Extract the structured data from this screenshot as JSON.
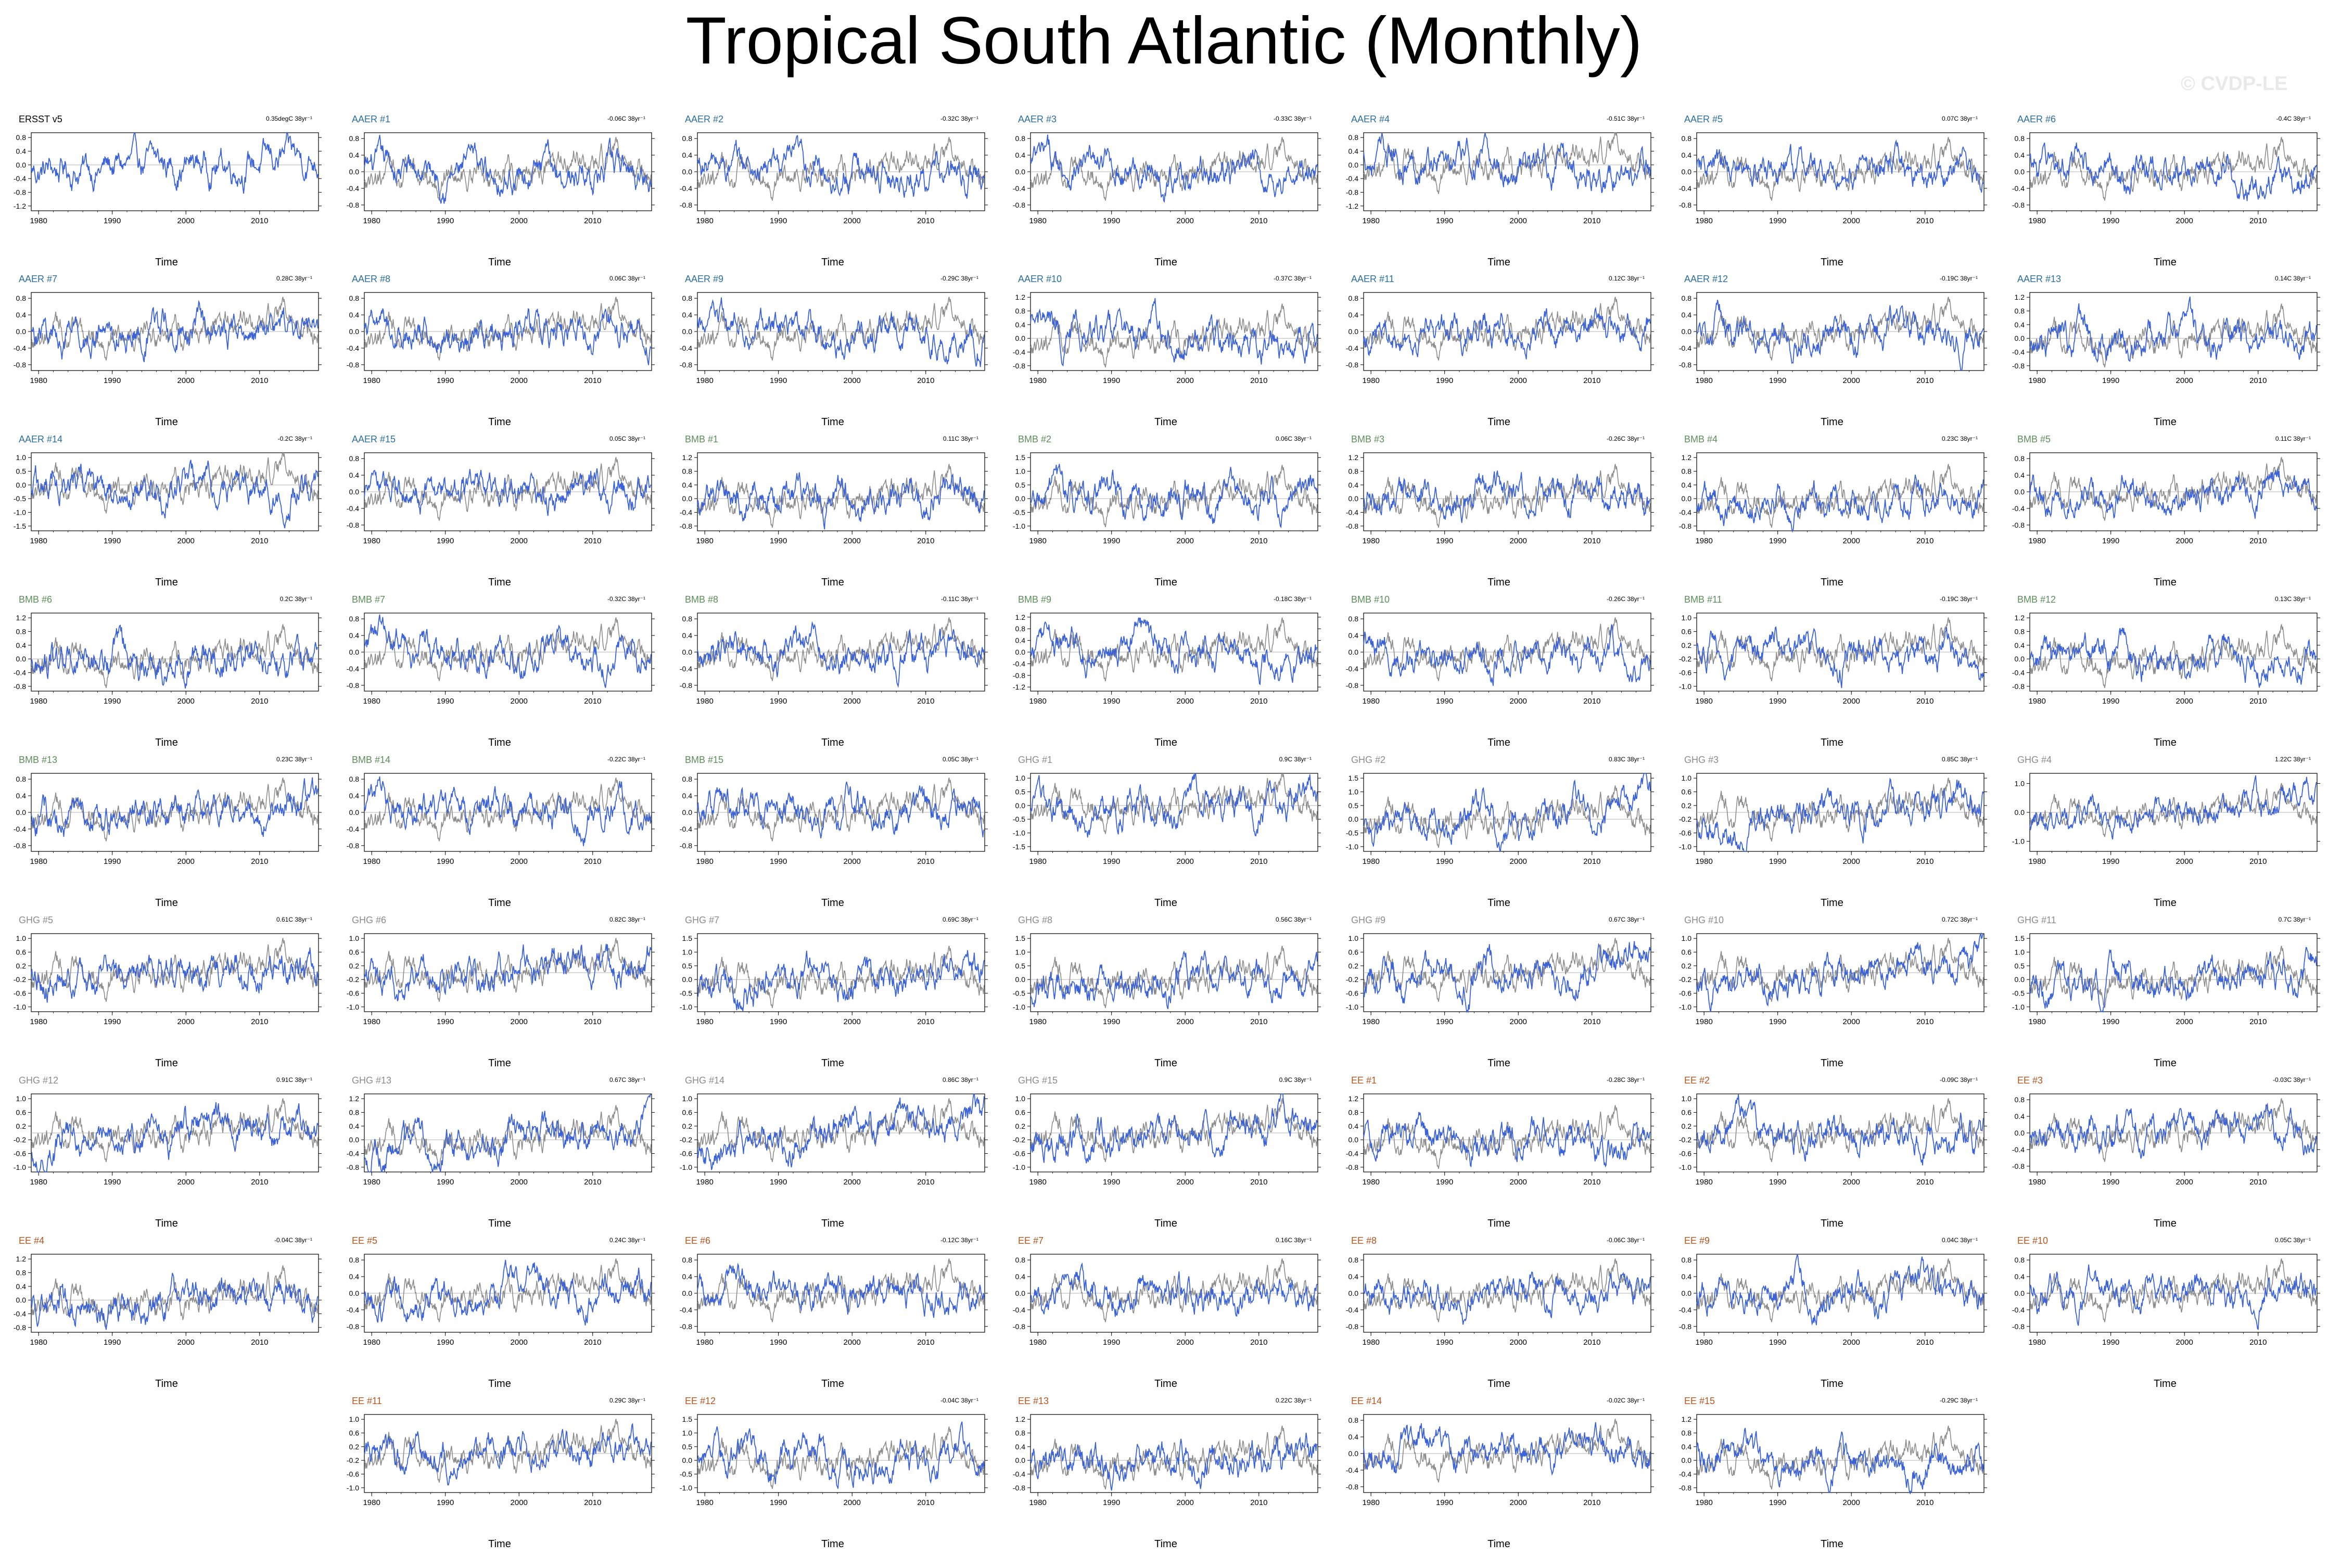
{
  "title": "Tropical South Atlantic (Monthly)",
  "copyright": "© CVDP-LE",
  "colors": {
    "obs_line": "#3b62d6",
    "model_line": "#8c8c8c",
    "zero_line": "#b4b4b4",
    "ersst_label": "#000000",
    "aaer_label": "#2a6fa1",
    "bmb_label": "#5a8f5a",
    "ghg_label": "#8c8c8c",
    "ee_label": "#b8541c"
  },
  "panels": [
    {
      "label": "ERSST v5",
      "group": "ersst",
      "trend": "0.35degC 38yr⁻¹"
    },
    {
      "label": "AAER #1",
      "group": "aaer",
      "trend": "-0.06C 38yr⁻¹"
    },
    {
      "label": "AAER #2",
      "group": "aaer",
      "trend": "-0.32C 38yr⁻¹"
    },
    {
      "label": "AAER #3",
      "group": "aaer",
      "trend": "-0.33C 38yr⁻¹"
    },
    {
      "label": "AAER #4",
      "group": "aaer",
      "trend": "-0.51C 38yr⁻¹"
    },
    {
      "label": "AAER #5",
      "group": "aaer",
      "trend": "0.07C 38yr⁻¹"
    },
    {
      "label": "AAER #6",
      "group": "aaer",
      "trend": "-0.4C 38yr⁻¹"
    },
    {
      "label": "AAER #7",
      "group": "aaer",
      "trend": "0.28C 38yr⁻¹"
    },
    {
      "label": "AAER #8",
      "group": "aaer",
      "trend": "0.06C 38yr⁻¹"
    },
    {
      "label": "AAER #9",
      "group": "aaer",
      "trend": "-0.29C 38yr⁻¹"
    },
    {
      "label": "AAER #10",
      "group": "aaer",
      "trend": "-0.37C 38yr⁻¹"
    },
    {
      "label": "AAER #11",
      "group": "aaer",
      "trend": "0.12C 38yr⁻¹"
    },
    {
      "label": "AAER #12",
      "group": "aaer",
      "trend": "-0.19C 38yr⁻¹"
    },
    {
      "label": "AAER #13",
      "group": "aaer",
      "trend": "0.14C 38yr⁻¹"
    },
    {
      "label": "AAER #14",
      "group": "aaer",
      "trend": "-0.2C 38yr⁻¹"
    },
    {
      "label": "AAER #15",
      "group": "aaer",
      "trend": "0.05C 38yr⁻¹"
    },
    {
      "label": "BMB #1",
      "group": "bmb",
      "trend": "0.11C 38yr⁻¹"
    },
    {
      "label": "BMB #2",
      "group": "bmb",
      "trend": "0.06C 38yr⁻¹"
    },
    {
      "label": "BMB #3",
      "group": "bmb",
      "trend": "-0.26C 38yr⁻¹"
    },
    {
      "label": "BMB #4",
      "group": "bmb",
      "trend": "0.23C 38yr⁻¹"
    },
    {
      "label": "BMB #5",
      "group": "bmb",
      "trend": "0.11C 38yr⁻¹"
    },
    {
      "label": "BMB #6",
      "group": "bmb",
      "trend": "0.2C 38yr⁻¹"
    },
    {
      "label": "BMB #7",
      "group": "bmb",
      "trend": "-0.32C 38yr⁻¹"
    },
    {
      "label": "BMB #8",
      "group": "bmb",
      "trend": "-0.11C 38yr⁻¹"
    },
    {
      "label": "BMB #9",
      "group": "bmb",
      "trend": "-0.18C 38yr⁻¹"
    },
    {
      "label": "BMB #10",
      "group": "bmb",
      "trend": "-0.26C 38yr⁻¹"
    },
    {
      "label": "BMB #11",
      "group": "bmb",
      "trend": "-0.19C 38yr⁻¹"
    },
    {
      "label": "BMB #12",
      "group": "bmb",
      "trend": "0.13C 38yr⁻¹"
    },
    {
      "label": "BMB #13",
      "group": "bmb",
      "trend": "0.23C 38yr⁻¹"
    },
    {
      "label": "BMB #14",
      "group": "bmb",
      "trend": "-0.22C 38yr⁻¹"
    },
    {
      "label": "BMB #15",
      "group": "bmb",
      "trend": "0.05C 38yr⁻¹"
    },
    {
      "label": "GHG #1",
      "group": "ghg",
      "trend": "0.9C 38yr⁻¹"
    },
    {
      "label": "GHG #2",
      "group": "ghg",
      "trend": "0.83C 38yr⁻¹"
    },
    {
      "label": "GHG #3",
      "group": "ghg",
      "trend": "0.85C 38yr⁻¹"
    },
    {
      "label": "GHG #4",
      "group": "ghg",
      "trend": "1.22C 38yr⁻¹"
    },
    {
      "label": "GHG #5",
      "group": "ghg",
      "trend": "0.61C 38yr⁻¹"
    },
    {
      "label": "GHG #6",
      "group": "ghg",
      "trend": "0.82C 38yr⁻¹"
    },
    {
      "label": "GHG #7",
      "group": "ghg",
      "trend": "0.69C 38yr⁻¹"
    },
    {
      "label": "GHG #8",
      "group": "ghg",
      "trend": "0.56C 38yr⁻¹"
    },
    {
      "label": "GHG #9",
      "group": "ghg",
      "trend": "0.67C 38yr⁻¹"
    },
    {
      "label": "GHG #10",
      "group": "ghg",
      "trend": "0.72C 38yr⁻¹"
    },
    {
      "label": "GHG #11",
      "group": "ghg",
      "trend": "0.7C 38yr⁻¹"
    },
    {
      "label": "GHG #12",
      "group": "ghg",
      "trend": "0.91C 38yr⁻¹"
    },
    {
      "label": "GHG #13",
      "group": "ghg",
      "trend": "0.67C 38yr⁻¹"
    },
    {
      "label": "GHG #14",
      "group": "ghg",
      "trend": "0.86C 38yr⁻¹"
    },
    {
      "label": "GHG #15",
      "group": "ghg",
      "trend": "0.9C 38yr⁻¹"
    },
    {
      "label": "EE #1",
      "group": "ee",
      "trend": "-0.28C 38yr⁻¹"
    },
    {
      "label": "EE #2",
      "group": "ee",
      "trend": "-0.09C 38yr⁻¹"
    },
    {
      "label": "EE #3",
      "group": "ee",
      "trend": "-0.03C 38yr⁻¹"
    },
    {
      "label": "EE #4",
      "group": "ee",
      "trend": "-0.04C 38yr⁻¹"
    },
    {
      "label": "EE #5",
      "group": "ee",
      "trend": "0.24C 38yr⁻¹"
    },
    {
      "label": "EE #6",
      "group": "ee",
      "trend": "-0.12C 38yr⁻¹"
    },
    {
      "label": "EE #7",
      "group": "ee",
      "trend": "0.16C 38yr⁻¹"
    },
    {
      "label": "EE #8",
      "group": "ee",
      "trend": "-0.06C 38yr⁻¹"
    },
    {
      "label": "EE #9",
      "group": "ee",
      "trend": "0.04C 38yr⁻¹"
    },
    {
      "label": "EE #10",
      "group": "ee",
      "trend": "0.05C 38yr⁻¹"
    },
    {
      "label": "EE #11",
      "group": "ee",
      "trend": "0.29C 38yr⁻¹"
    },
    {
      "label": "EE #12",
      "group": "ee",
      "trend": "-0.04C 38yr⁻¹"
    },
    {
      "label": "EE #13",
      "group": "ee",
      "trend": "0.22C 38yr⁻¹"
    },
    {
      "label": "EE #14",
      "group": "ee",
      "trend": "-0.02C 38yr⁻¹"
    },
    {
      "label": "EE #15",
      "group": "ee",
      "trend": "-0.29C 38yr⁻¹"
    }
  ],
  "chart_data": {
    "type": "line",
    "title": "Tropical South Atlantic (Monthly)",
    "xlabel": "Time",
    "xlim": [
      1979,
      2018
    ],
    "x_ticks": [
      1980,
      1990,
      2000,
      2010
    ],
    "ylim_typical": [
      -1.2,
      1.2
    ],
    "y_tick_sets": {
      "a": [
        -1.2,
        -0.8,
        -0.4,
        0.0,
        0.4,
        0.8
      ],
      "b": [
        -0.8,
        -0.4,
        0.0,
        0.4,
        0.8
      ],
      "c": [
        -0.8,
        -0.4,
        0.0,
        0.4,
        0.8,
        1.2
      ],
      "d": [
        -1.5,
        -1.0,
        -0.5,
        0.0,
        0.5,
        1.0
      ],
      "e": [
        -1.0,
        -0.5,
        0.0,
        0.5,
        1.0,
        1.5
      ],
      "f": [
        -1.0,
        -0.6,
        -0.2,
        0.2,
        0.6,
        1.0
      ],
      "g": [
        -1.2,
        -0.8,
        -0.4,
        0.0,
        0.4,
        0.8,
        1.2
      ],
      "h": [
        -1.0,
        0.0,
        1.0
      ]
    },
    "panel_yticks": [
      "a",
      "b",
      "b",
      "b",
      "a",
      "b",
      "b",
      "b",
      "b",
      "b",
      "c",
      "b",
      "b",
      "c",
      "d",
      "b",
      "c",
      "e",
      "c",
      "c",
      "b",
      "c",
      "b",
      "b",
      "g",
      "b",
      "f",
      "c",
      "b",
      "b",
      "b",
      "d",
      "e",
      "f",
      "h",
      "f",
      "f",
      "e",
      "e",
      "f",
      "f",
      "e",
      "f",
      "c",
      "f",
      "f",
      "c",
      "f",
      "b",
      "c",
      "b",
      "b",
      "b",
      "b",
      "b",
      "b",
      "f",
      "e",
      "c",
      "b",
      "c"
    ],
    "series": [
      {
        "name": "ERSST v5",
        "color": "#3b62d6",
        "role": "observed"
      },
      {
        "color": "#8c8c8c",
        "role": "ensemble"
      }
    ]
  }
}
